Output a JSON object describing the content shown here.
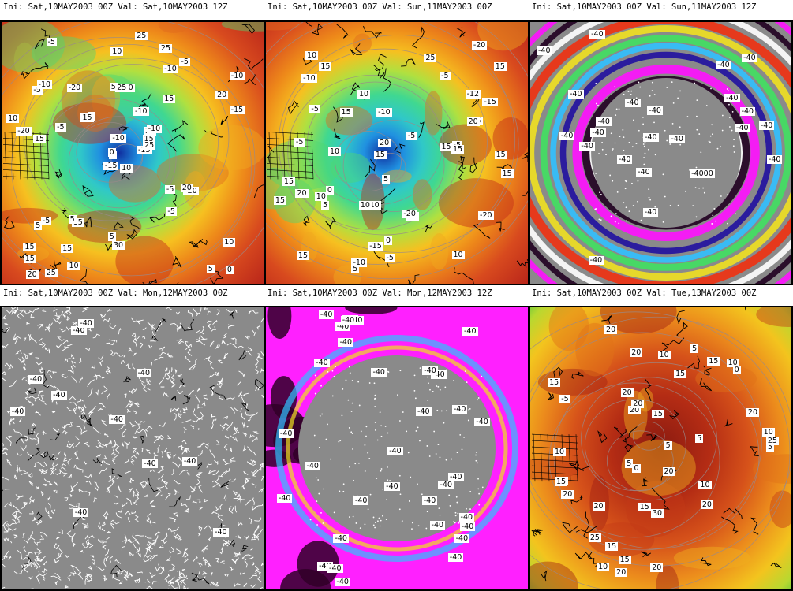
{
  "panels": [
    {
      "title": "Ini: Sat,10MAY2003 00Z Val: Sat,10MAY2003 12Z",
      "style": "warm",
      "labels": [
        "10",
        "-5",
        "5",
        "15",
        "10",
        "15",
        "25",
        "10",
        "-10",
        "-15",
        "-5",
        "0",
        "15",
        "-10",
        "-15",
        "15",
        "25",
        "5",
        "-10",
        "-5",
        "0",
        "15",
        "15",
        "25",
        "-10",
        "-20",
        "-10",
        "10",
        "-20",
        "-5",
        "-15",
        "0",
        "5",
        "-10",
        "-20",
        "-5",
        "5",
        "5",
        "10",
        "20",
        "25",
        "15",
        "-5",
        "-5",
        "10",
        "10",
        "15",
        "20",
        "30",
        "25",
        "5",
        "20"
      ]
    },
    {
      "title": "Ini: Sat,10MAY2003 00Z Val: Sun,11MAY2003 00Z",
      "style": "warm",
      "labels": [
        "15",
        "10",
        "-5",
        "5",
        "0",
        "10",
        "15",
        "10",
        "-10",
        "15",
        "5",
        "15",
        "-10",
        "-15",
        "15",
        "15",
        "15",
        "-10",
        "-5",
        "-5",
        "-20",
        "-10",
        "0",
        "15",
        "10",
        "-20",
        "-15",
        "-5",
        "-20",
        "-12",
        "-15",
        "-5",
        "5",
        "-5",
        "20",
        "15",
        "10",
        "15",
        "15",
        "20",
        "25",
        "20",
        "15",
        "10"
      ]
    },
    {
      "title": "Ini: Sat,10MAY2003 00Z Val: Sun,11MAY2003 12Z",
      "style": "chaos",
      "labels": [
        "-40",
        "-40",
        "-40",
        "-40",
        "-40",
        "-40",
        "-40",
        "-40",
        "-40",
        "-40",
        "-40",
        "-40",
        "-40",
        "-40",
        "-40",
        "-40",
        "-40",
        "-40",
        "-4000",
        "-40",
        "-40",
        "-40",
        "-40"
      ]
    },
    {
      "title": "Ini: Sat,10MAY2003 00Z Val: Mon,12MAY2003 00Z",
      "style": "gray",
      "labels": [
        "-40",
        "-40",
        "-40",
        "-40",
        "-40",
        "-40",
        "-40",
        "-40",
        "-40",
        "-40",
        "-40"
      ]
    },
    {
      "title": "Ini: Sat,10MAY2003 00Z Val: Mon,12MAY2003 12Z",
      "style": "magenta",
      "labels": [
        "-40",
        "-40",
        "-40",
        "-40",
        "-40",
        "-40",
        "-40",
        "-40",
        "-40",
        "-40",
        "-40",
        "-40",
        "-40",
        "-40",
        "-40",
        "-40",
        "-40",
        "-40",
        "-40",
        "-40",
        "-40",
        "-40",
        "-40",
        "-40",
        "-40",
        "-40",
        "-40",
        "-40",
        "-40",
        "-40",
        "-40",
        "-40"
      ]
    },
    {
      "title": "Ini: Sat,10MAY2003 00Z Val: Tue,13MAY2003 00Z",
      "style": "hot",
      "labels": [
        "5",
        "0",
        "-5",
        "10",
        "10",
        "15",
        "15",
        "10",
        "15",
        "20",
        "20",
        "15",
        "10",
        "20",
        "20",
        "15",
        "25",
        "30",
        "20",
        "20",
        "20",
        "20",
        "20",
        "25",
        "20",
        "20",
        "5",
        "15",
        "20",
        "15",
        "5",
        "10",
        "5",
        "10",
        "15",
        "10",
        "5",
        "0"
      ]
    }
  ]
}
